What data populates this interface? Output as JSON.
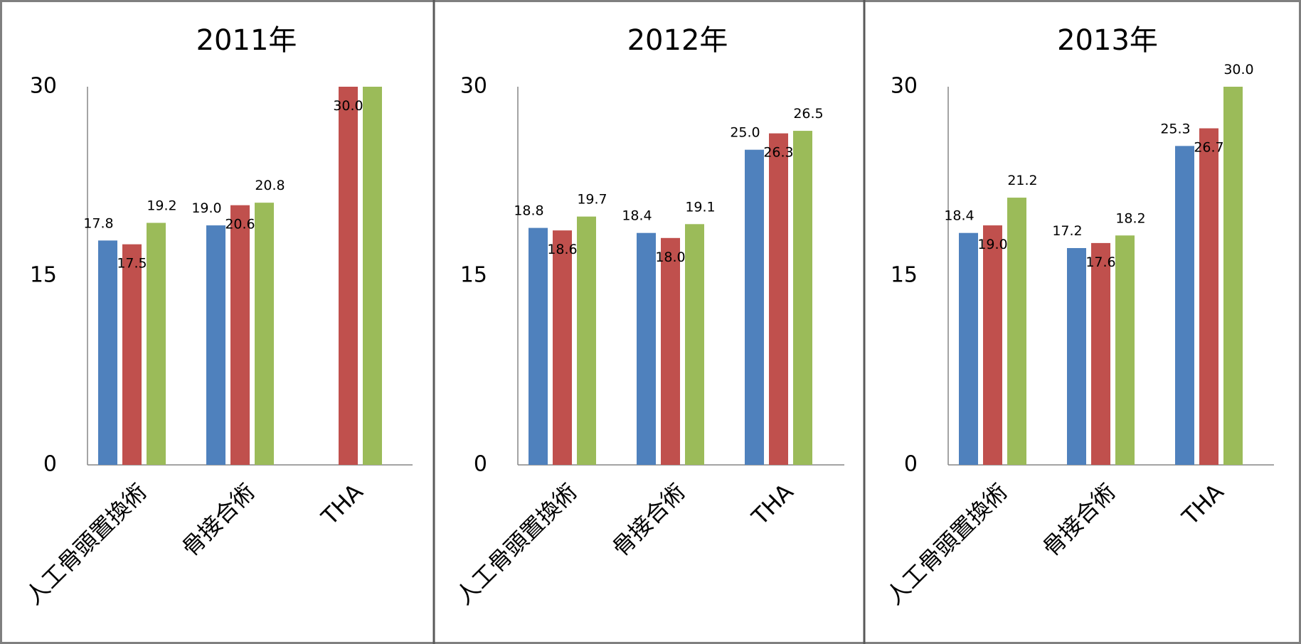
{
  "chart_data": [
    {
      "type": "bar",
      "title": "2011年",
      "categories": [
        "人工骨頭置換術",
        "骨接合術",
        "THA"
      ],
      "ylim": [
        0,
        30
      ],
      "yticks": [
        "0",
        "15",
        "30"
      ],
      "grid": false,
      "series": [
        {
          "color": "#4F81BD",
          "values": [
            17.8,
            19.0,
            null
          ],
          "labels": [
            "17.8",
            "19.0",
            ""
          ]
        },
        {
          "color": "#C0504D",
          "values": [
            17.5,
            20.6,
            30.0
          ],
          "labels": [
            "17.5",
            "20.6",
            "30.0"
          ]
        },
        {
          "color": "#9BBB59",
          "values": [
            19.2,
            20.8,
            30.0
          ],
          "labels": [
            "19.2",
            "20.8",
            ""
          ]
        }
      ]
    },
    {
      "type": "bar",
      "title": "2012年",
      "categories": [
        "人工骨頭置換術",
        "骨接合術",
        "THA"
      ],
      "ylim": [
        0,
        30
      ],
      "yticks": [
        "0",
        "15",
        "30"
      ],
      "grid": false,
      "series": [
        {
          "color": "#4F81BD",
          "values": [
            18.8,
            18.4,
            25.0
          ],
          "labels": [
            "18.8",
            "18.4",
            "25.0"
          ]
        },
        {
          "color": "#C0504D",
          "values": [
            18.6,
            18.0,
            26.3
          ],
          "labels": [
            "18.6",
            "18.0",
            "26.3"
          ]
        },
        {
          "color": "#9BBB59",
          "values": [
            19.7,
            19.1,
            26.5
          ],
          "labels": [
            "19.7",
            "19.1",
            "26.5"
          ]
        }
      ]
    },
    {
      "type": "bar",
      "title": "2013年",
      "categories": [
        "人工骨頭置換術",
        "骨接合術",
        "THA"
      ],
      "ylim": [
        0,
        30
      ],
      "yticks": [
        "0",
        "15",
        "30"
      ],
      "grid": false,
      "series": [
        {
          "color": "#4F81BD",
          "values": [
            18.4,
            17.2,
            25.3
          ],
          "labels": [
            "18.4",
            "17.2",
            "25.3"
          ]
        },
        {
          "color": "#C0504D",
          "values": [
            19.0,
            17.6,
            26.7
          ],
          "labels": [
            "19.0",
            "17.6",
            "26.7"
          ]
        },
        {
          "color": "#9BBB59",
          "values": [
            21.2,
            18.2,
            30.0
          ],
          "labels": [
            "21.2",
            "18.2",
            "30.0"
          ]
        }
      ]
    }
  ]
}
